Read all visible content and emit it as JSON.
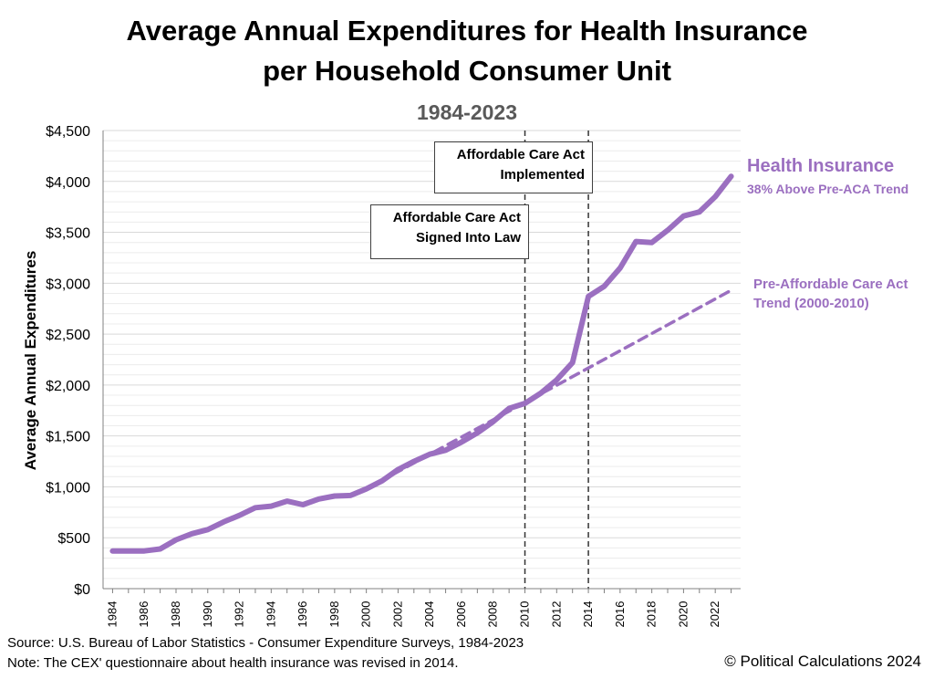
{
  "title_line1": "Average Annual Expenditures for Health Insurance",
  "title_line2": "per Household Consumer Unit",
  "subtitle": "1984-2023",
  "source": "Source: U.S. Bureau of Labor Statistics - Consumer Expenditure Surveys, 1984-2023",
  "note": "Note: The CEX' questionnaire about health insurance was revised in 2014.",
  "copyright": "© Political Calculations 2024",
  "annotations": {
    "law": {
      "line1": "Affordable Care Act",
      "line2": "Signed Into Law",
      "year": 2010
    },
    "implemented": {
      "line1": "Affordable Care Act",
      "line2": "Implemented",
      "year": 2014
    }
  },
  "series_labels": {
    "health_insurance": "Health Insurance",
    "health_insurance_sub": "38% Above Pre-ACA Trend",
    "trend_line1": "Pre-Affordable Care Act",
    "trend_line2": "Trend (2000-2010)"
  },
  "colors": {
    "series": "#9b6fc0",
    "trend": "#9b6fc0",
    "grid": "#d9d9d9",
    "vline": "#333333"
  },
  "chart_data": {
    "type": "line",
    "title": "Average Annual Expenditures for Health Insurance per Household Consumer Unit",
    "subtitle": "1984-2023",
    "ylabel": "Average Annual Expenditures",
    "xlabel": "",
    "xlim": [
      1984,
      2023
    ],
    "ylim": [
      0,
      4500
    ],
    "y_ticks": [
      0,
      500,
      1000,
      1500,
      2000,
      2500,
      3000,
      3500,
      4000,
      4500
    ],
    "y_tick_labels": [
      "$0",
      "$500",
      "$1,000",
      "$1,500",
      "$2,000",
      "$2,500",
      "$3,000",
      "$3,500",
      "$4,000",
      "$4,500"
    ],
    "x_tick_labels": [
      "1984",
      "1986",
      "1988",
      "1990",
      "1992",
      "1994",
      "1996",
      "1998",
      "2000",
      "2002",
      "2004",
      "2006",
      "2008",
      "2010",
      "2012",
      "2014",
      "2016",
      "2018",
      "2020",
      "2022"
    ],
    "grid": true,
    "series": [
      {
        "name": "Health Insurance",
        "style": "solid",
        "x": [
          1984,
          1985,
          1986,
          1987,
          1988,
          1989,
          1990,
          1991,
          1992,
          1993,
          1994,
          1995,
          1996,
          1997,
          1998,
          1999,
          2000,
          2001,
          2002,
          2003,
          2004,
          2005,
          2006,
          2007,
          2008,
          2009,
          2010,
          2011,
          2012,
          2013,
          2014,
          2015,
          2016,
          2017,
          2018,
          2019,
          2020,
          2021,
          2022,
          2023
        ],
        "values": [
          370,
          370,
          370,
          390,
          480,
          540,
          580,
          655,
          720,
          795,
          810,
          860,
          825,
          880,
          910,
          915,
          980,
          1060,
          1170,
          1250,
          1320,
          1360,
          1440,
          1530,
          1640,
          1770,
          1820,
          1920,
          2050,
          2220,
          2870,
          2970,
          3150,
          3410,
          3400,
          3520,
          3660,
          3700,
          3850,
          4050
        ]
      },
      {
        "name": "Pre-Affordable Care Act Trend (2000-2010)",
        "style": "dashed",
        "x": [
          2000,
          2023
        ],
        "values": [
          980,
          2930
        ]
      }
    ]
  }
}
